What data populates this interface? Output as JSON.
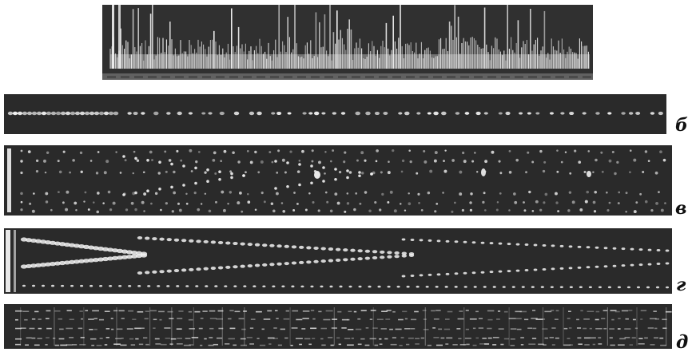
{
  "figure": {
    "background_color": "#ffffff",
    "panel_color": "#2a2a2a",
    "trace_color": "#f2f2f2",
    "label_color": "#111111"
  },
  "panels": [
    {
      "id": "a",
      "label": ""
    },
    {
      "id": "b",
      "label": "б"
    },
    {
      "id": "v",
      "label": "в"
    },
    {
      "id": "g",
      "label": "г"
    },
    {
      "id": "d",
      "label": "д"
    }
  ]
}
